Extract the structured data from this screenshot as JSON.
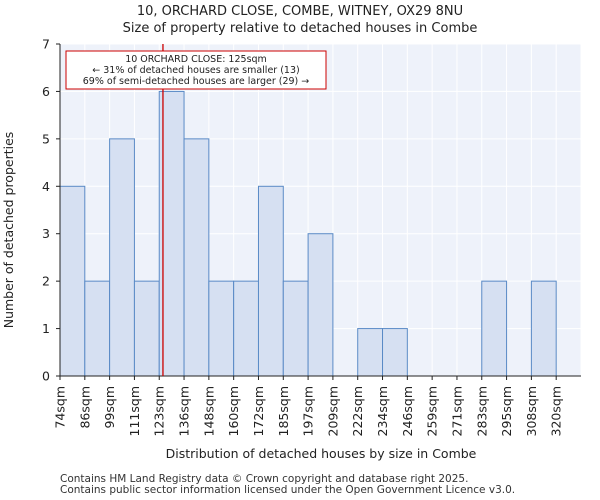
{
  "header": {
    "title_line1": "10, ORCHARD CLOSE, COMBE, WITNEY, OX29 8NU",
    "title_line2": "Size of property relative to detached houses in Combe"
  },
  "chart_data": {
    "type": "bar",
    "title": "Size of property relative to detached houses in Combe",
    "xlabel": "Distribution of detached houses by size in Combe",
    "ylabel": "Number of detached properties",
    "categories": [
      "74sqm",
      "86sqm",
      "99sqm",
      "111sqm",
      "123sqm",
      "136sqm",
      "148sqm",
      "160sqm",
      "172sqm",
      "185sqm",
      "197sqm",
      "209sqm",
      "222sqm",
      "234sqm",
      "246sqm",
      "259sqm",
      "271sqm",
      "283sqm",
      "295sqm",
      "308sqm",
      "320sqm"
    ],
    "values": [
      4,
      2,
      5,
      2,
      6,
      5,
      2,
      2,
      4,
      2,
      3,
      0,
      1,
      1,
      0,
      0,
      0,
      2,
      0,
      2,
      0
    ],
    "ylim": [
      0,
      7
    ],
    "yticks": [
      0,
      1,
      2,
      3,
      4,
      5,
      6,
      7
    ],
    "grid": true,
    "bar_color": "#d6e0f2",
    "bar_edge_color": "#5a8ac6",
    "marker": {
      "value_sqm": 125,
      "bin_position": 4.15,
      "color": "#cc0000",
      "annotation_lines": [
        "10 ORCHARD CLOSE: 125sqm",
        "← 31% of detached houses are smaller (13)",
        "69% of semi-detached houses are larger (29) →"
      ]
    }
  },
  "footer": {
    "line1": "Contains HM Land Registry data © Crown copyright and database right 2025.",
    "line2": "Contains public sector information licensed under the Open Government Licence v3.0."
  }
}
